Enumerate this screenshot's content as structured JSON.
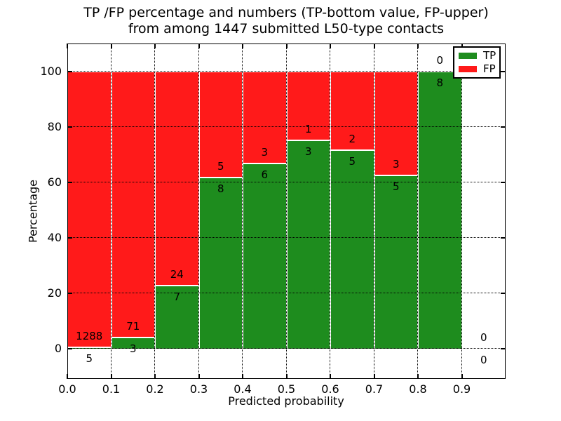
{
  "chart_data": {
    "type": "bar",
    "stacked": true,
    "title_lines": [
      "TP /FP percentage and numbers (TP-bottom value, FP-upper)",
      "from among 1447 submitted L50-type contacts"
    ],
    "xlabel": "Predicted probability",
    "ylabel": "Percentage",
    "total_contacts": 1447,
    "xlim": [
      0.0,
      1.0
    ],
    "ylim": [
      -11,
      110
    ],
    "grid": true,
    "x_tick_values": [
      0.0,
      0.1,
      0.2,
      0.3,
      0.4,
      0.5,
      0.6,
      0.7,
      0.8,
      0.9
    ],
    "x_tick_labels": [
      "0.0",
      "0.1",
      "0.2",
      "0.3",
      "0.4",
      "0.5",
      "0.6",
      "0.7",
      "0.8",
      "0.9"
    ],
    "y_tick_values": [
      0,
      20,
      40,
      60,
      80,
      100
    ],
    "y_tick_labels": [
      "0",
      "20",
      "40",
      "60",
      "80",
      "100"
    ],
    "bins": [
      {
        "x_start": 0.0,
        "x_end": 0.1,
        "tp_count": 5,
        "fp_count": 1288,
        "tp_pct": 0.39,
        "fp_pct": 99.61
      },
      {
        "x_start": 0.1,
        "x_end": 0.2,
        "tp_count": 3,
        "fp_count": 71,
        "tp_pct": 4.05,
        "fp_pct": 95.95
      },
      {
        "x_start": 0.2,
        "x_end": 0.3,
        "tp_count": 7,
        "fp_count": 24,
        "tp_pct": 22.58,
        "fp_pct": 77.42
      },
      {
        "x_start": 0.3,
        "x_end": 0.4,
        "tp_count": 8,
        "fp_count": 5,
        "tp_pct": 61.54,
        "fp_pct": 38.46
      },
      {
        "x_start": 0.4,
        "x_end": 0.5,
        "tp_count": 6,
        "fp_count": 3,
        "tp_pct": 66.67,
        "fp_pct": 33.33
      },
      {
        "x_start": 0.5,
        "x_end": 0.6,
        "tp_count": 3,
        "fp_count": 1,
        "tp_pct": 75.0,
        "fp_pct": 25.0
      },
      {
        "x_start": 0.6,
        "x_end": 0.7,
        "tp_count": 5,
        "fp_count": 2,
        "tp_pct": 71.43,
        "fp_pct": 28.57
      },
      {
        "x_start": 0.7,
        "x_end": 0.8,
        "tp_count": 5,
        "fp_count": 3,
        "tp_pct": 62.5,
        "fp_pct": 37.5
      },
      {
        "x_start": 0.8,
        "x_end": 0.9,
        "tp_count": 8,
        "fp_count": 0,
        "tp_pct": 100.0,
        "fp_pct": 0.0
      },
      {
        "x_start": 0.9,
        "x_end": 1.0,
        "tp_count": 0,
        "fp_count": 0,
        "tp_pct": 0.0,
        "fp_pct": 0.0
      }
    ],
    "legend": {
      "position": "upper right",
      "entries": [
        {
          "label": "TP",
          "color": "#1e8c1e"
        },
        {
          "label": "FP",
          "color": "#ff1a1a"
        }
      ]
    },
    "colors": {
      "tp": "#1e8c1e",
      "fp": "#ff1a1a",
      "grid": "#000000",
      "frame": "#000000",
      "bar_edge": "#ffffff",
      "background": "#ffffff",
      "text": "#000000"
    }
  }
}
